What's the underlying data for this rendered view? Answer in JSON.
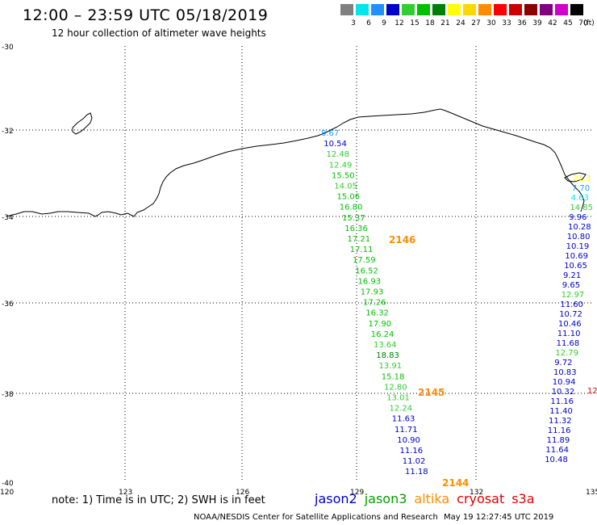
{
  "header": {
    "title": "12:00 – 23:59 UTC 05/18/2019",
    "subtitle": "12 hour collection of altimeter wave heights"
  },
  "legend": {
    "unit": "(ft)",
    "items": [
      {
        "label": "3",
        "color": "#808080"
      },
      {
        "label": "6",
        "color": "#00e5ee"
      },
      {
        "label": "9",
        "color": "#1e90ff"
      },
      {
        "label": "12",
        "color": "#0000cd"
      },
      {
        "label": "15",
        "color": "#32cd32"
      },
      {
        "label": "18",
        "color": "#00c000"
      },
      {
        "label": "21",
        "color": "#008000"
      },
      {
        "label": "24",
        "color": "#ffff00"
      },
      {
        "label": "27",
        "color": "#ffd700"
      },
      {
        "label": "30",
        "color": "#ff8c00"
      },
      {
        "label": "33",
        "color": "#ff0000"
      },
      {
        "label": "36",
        "color": "#cd0000"
      },
      {
        "label": "39",
        "color": "#8b0000"
      },
      {
        "label": "42",
        "color": "#800080"
      },
      {
        "label": "45",
        "color": "#cd00cd"
      },
      {
        "label": "70",
        "color": "#000000"
      }
    ]
  },
  "axes": {
    "lat_labels": [
      "-30",
      "-32",
      "-34",
      "-36",
      "-38",
      "-40"
    ],
    "lon_labels": [
      "120",
      "123",
      "126",
      "129",
      "132",
      "135"
    ],
    "lon_range": [
      120,
      135
    ],
    "lat_range": [
      -40,
      -30
    ]
  },
  "footer": {
    "note": "note:  1) Time is in UTC;  2) SWH is in feet",
    "satellites": [
      {
        "name": "jason2",
        "color": "#0000cd"
      },
      {
        "name": "jason3",
        "color": "#00a000"
      },
      {
        "name": "altika",
        "color": "#ff8c00"
      },
      {
        "name": "cryosat",
        "color": "#e00000"
      },
      {
        "name": "s3a",
        "color": "#e00000"
      }
    ],
    "credit": "NOAA/NESDIS Center for Satellite Applications and Research",
    "timestamp": "May 19 12:27:45 UTC 2019"
  },
  "track1": {
    "points": [
      {
        "v": "8.67",
        "c": "#1ea0ff"
      },
      {
        "v": "10.54",
        "c": "#0000cd"
      },
      {
        "v": "12.48",
        "c": "#32cd32"
      },
      {
        "v": "12.49",
        "c": "#32cd32"
      },
      {
        "v": "15.50",
        "c": "#00c000"
      },
      {
        "v": "14.05",
        "c": "#32cd32"
      },
      {
        "v": "15.06",
        "c": "#00c000"
      },
      {
        "v": "16.80",
        "c": "#00c000"
      },
      {
        "v": "15.37",
        "c": "#00c000"
      },
      {
        "v": "16.36",
        "c": "#00c000"
      },
      {
        "v": "17.21",
        "c": "#00c000"
      },
      {
        "v": "17.11",
        "c": "#00c000"
      },
      {
        "v": "17.59",
        "c": "#00c000"
      },
      {
        "v": "16.52",
        "c": "#00c000"
      },
      {
        "v": "16.93",
        "c": "#00c000"
      },
      {
        "v": "17.93",
        "c": "#00c000"
      },
      {
        "v": "17.26",
        "c": "#00c000"
      },
      {
        "v": "16.32",
        "c": "#00c000"
      },
      {
        "v": "17.90",
        "c": "#00c000"
      },
      {
        "v": "16.24",
        "c": "#00c000"
      },
      {
        "v": "13.64",
        "c": "#32cd32"
      },
      {
        "v": "18.83",
        "c": "#008000"
      },
      {
        "v": "13.91",
        "c": "#32cd32"
      },
      {
        "v": "15.18",
        "c": "#00c000"
      },
      {
        "v": "12.80",
        "c": "#32cd32"
      },
      {
        "v": "13.01",
        "c": "#32cd32"
      },
      {
        "v": "12.24",
        "c": "#32cd32"
      },
      {
        "v": "11.63",
        "c": "#0000cd"
      },
      {
        "v": "11.71",
        "c": "#0000cd"
      },
      {
        "v": "10.90",
        "c": "#0000cd"
      },
      {
        "v": "11.16",
        "c": "#0000cd"
      },
      {
        "v": "11.02",
        "c": "#0000cd"
      },
      {
        "v": "11.18",
        "c": "#0000cd"
      }
    ],
    "pass_labels": [
      "2146",
      "2145",
      "2144"
    ]
  },
  "track2": {
    "points": [
      {
        "v": "21.3",
        "c": "#ffff00"
      },
      {
        "v": "7.70",
        "c": "#1ea0ff"
      },
      {
        "v": "4.63",
        "c": "#00e5ee"
      },
      {
        "v": "14.85",
        "c": "#32cd32"
      },
      {
        "v": "9.96",
        "c": "#0000cd"
      },
      {
        "v": "10.28",
        "c": "#0000cd"
      },
      {
        "v": "10.80",
        "c": "#0000cd"
      },
      {
        "v": "10.19",
        "c": "#0000cd"
      },
      {
        "v": "10.69",
        "c": "#0000cd"
      },
      {
        "v": "10.65",
        "c": "#0000cd"
      },
      {
        "v": "9.21",
        "c": "#0000cd"
      },
      {
        "v": "9.65",
        "c": "#0000cd"
      },
      {
        "v": "12.97",
        "c": "#32cd32"
      },
      {
        "v": "11.60",
        "c": "#0000cd"
      },
      {
        "v": "10.72",
        "c": "#0000cd"
      },
      {
        "v": "10.46",
        "c": "#0000cd"
      },
      {
        "v": "11.10",
        "c": "#0000cd"
      },
      {
        "v": "11.68",
        "c": "#0000cd"
      },
      {
        "v": "12.79",
        "c": "#32cd32"
      },
      {
        "v": "9.72",
        "c": "#0000cd"
      },
      {
        "v": "10.83",
        "c": "#0000cd"
      },
      {
        "v": "10.94",
        "c": "#0000cd"
      },
      {
        "v": "10.32",
        "c": "#0000cd"
      },
      {
        "v": "11.16",
        "c": "#0000cd"
      },
      {
        "v": "11.40",
        "c": "#0000cd"
      },
      {
        "v": "11.32",
        "c": "#0000cd"
      },
      {
        "v": "11.16",
        "c": "#0000cd"
      },
      {
        "v": "11.89",
        "c": "#0000cd"
      },
      {
        "v": "11.64",
        "c": "#0000cd"
      },
      {
        "v": "10.48",
        "c": "#0000cd"
      }
    ],
    "edge_label": "12"
  }
}
